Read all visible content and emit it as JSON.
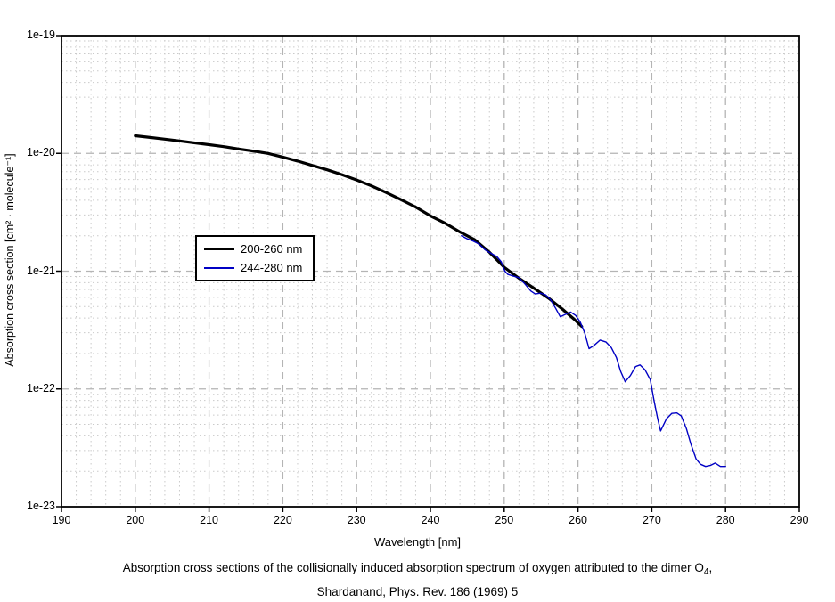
{
  "figure": {
    "caption_line1_pre": "Absorption cross sections of the collisionally induced absorption spectrum of oxygen attributed to the dimer O",
    "caption_sub": "4",
    "caption_line1_post": ",",
    "caption_line2": "Shardanand, Phys. Rev. 186 (1969) 5"
  },
  "chart_data": {
    "type": "line",
    "xlabel": "Wavelength [nm]",
    "ylabel": "Absorption cross section [cm² · molecule⁻¹]",
    "x_axis": {
      "min": 190,
      "max": 290,
      "ticks": [
        190,
        200,
        210,
        220,
        230,
        240,
        250,
        260,
        270,
        280,
        290
      ],
      "minor_step": 2,
      "scale": "linear"
    },
    "y_axis": {
      "min": 1e-23,
      "max": 1e-19,
      "scale": "log",
      "ticks": [
        {
          "label": "1e-19",
          "value": 1e-19
        },
        {
          "label": "1e-20",
          "value": 1e-20
        },
        {
          "label": "1e-21",
          "value": 1e-21
        },
        {
          "label": "1e-22",
          "value": 1e-22
        },
        {
          "label": "1e-23",
          "value": 1e-23
        }
      ]
    },
    "grid": {
      "major_color": "#b4b4b4",
      "minor_color": "#cacaca",
      "major_dash": "8 6",
      "minor_dash": "1.5 3.5"
    },
    "legend": {
      "position": "upper-left-of-center",
      "entries": [
        {
          "label": "200-260 nm",
          "color": "#000000",
          "width": 3.2
        },
        {
          "label": "244-280 nm",
          "color": "#0000c4",
          "width": 1.4
        }
      ]
    },
    "series": [
      {
        "name": "200-260 nm",
        "color": "#000000",
        "width": 3.2,
        "points": [
          [
            200,
            1.41e-20
          ],
          [
            202,
            1.365e-20
          ],
          [
            204,
            1.32e-20
          ],
          [
            206,
            1.275e-20
          ],
          [
            208,
            1.23e-20
          ],
          [
            210,
            1.185e-20
          ],
          [
            212,
            1.14e-20
          ],
          [
            214,
            1.09e-20
          ],
          [
            216,
            1.045e-20
          ],
          [
            218,
            1e-20
          ],
          [
            220,
            9.3e-21
          ],
          [
            222,
            8.6e-21
          ],
          [
            224,
            7.9e-21
          ],
          [
            226,
            7.25e-21
          ],
          [
            228,
            6.6e-21
          ],
          [
            230,
            5.95e-21
          ],
          [
            232,
            5.3e-21
          ],
          [
            234,
            4.65e-21
          ],
          [
            236,
            4.05e-21
          ],
          [
            238,
            3.5e-21
          ],
          [
            240,
            2.95e-21
          ],
          [
            242,
            2.55e-21
          ],
          [
            244,
            2.15e-21
          ],
          [
            246,
            1.85e-21
          ],
          [
            248,
            1.45e-21
          ],
          [
            250,
            1.08e-21
          ],
          [
            252,
            8.7e-22
          ],
          [
            254,
            7.2e-22
          ],
          [
            256,
            5.9e-22
          ],
          [
            258,
            4.7e-22
          ],
          [
            259.5,
            3.9e-22
          ],
          [
            260.5,
            3.4e-22
          ]
        ]
      },
      {
        "name": "244-280 nm",
        "color": "#0000c4",
        "width": 1.4,
        "points": [
          [
            244.2,
            2e-21
          ],
          [
            245,
            1.88e-21
          ],
          [
            245.8,
            1.8e-21
          ],
          [
            246.6,
            1.7e-21
          ],
          [
            247.4,
            1.52e-21
          ],
          [
            248.2,
            1.42e-21
          ],
          [
            249,
            1.33e-21
          ],
          [
            249.6,
            1.2e-21
          ],
          [
            250.1,
            1e-21
          ],
          [
            250.5,
            9.4e-22
          ],
          [
            251.2,
            9.1e-22
          ],
          [
            252,
            8.8e-22
          ],
          [
            252.8,
            7.8e-22
          ],
          [
            253.6,
            6.8e-22
          ],
          [
            254.2,
            6.4e-22
          ],
          [
            254.9,
            6.5e-22
          ],
          [
            255.6,
            6.3e-22
          ],
          [
            256.3,
            5.7e-22
          ],
          [
            257,
            4.8e-22
          ],
          [
            257.6,
            4.1e-22
          ],
          [
            258.3,
            4.3e-22
          ],
          [
            259,
            4.5e-22
          ],
          [
            259.7,
            4.2e-22
          ],
          [
            260.3,
            3.7e-22
          ],
          [
            260.9,
            3e-22
          ],
          [
            261.5,
            2.2e-22
          ],
          [
            262.2,
            2.35e-22
          ],
          [
            263,
            2.6e-22
          ],
          [
            263.8,
            2.5e-22
          ],
          [
            264.5,
            2.25e-22
          ],
          [
            265.2,
            1.85e-22
          ],
          [
            265.8,
            1.4e-22
          ],
          [
            266.4,
            1.15e-22
          ],
          [
            267.1,
            1.3e-22
          ],
          [
            267.8,
            1.55e-22
          ],
          [
            268.4,
            1.6e-22
          ],
          [
            269.1,
            1.45e-22
          ],
          [
            269.8,
            1.2e-22
          ],
          [
            270.3,
            8e-23
          ],
          [
            270.8,
            5.6e-23
          ],
          [
            271.2,
            4.4e-23
          ],
          [
            272,
            5.6e-23
          ],
          [
            272.7,
            6.2e-23
          ],
          [
            273.4,
            6.25e-23
          ],
          [
            274,
            5.9e-23
          ],
          [
            274.7,
            4.6e-23
          ],
          [
            275.3,
            3.4e-23
          ],
          [
            276,
            2.55e-23
          ],
          [
            276.6,
            2.3e-23
          ],
          [
            277.3,
            2.2e-23
          ],
          [
            278,
            2.25e-23
          ],
          [
            278.6,
            2.35e-23
          ],
          [
            279.3,
            2.2e-23
          ],
          [
            280,
            2.2e-23
          ]
        ]
      }
    ]
  }
}
